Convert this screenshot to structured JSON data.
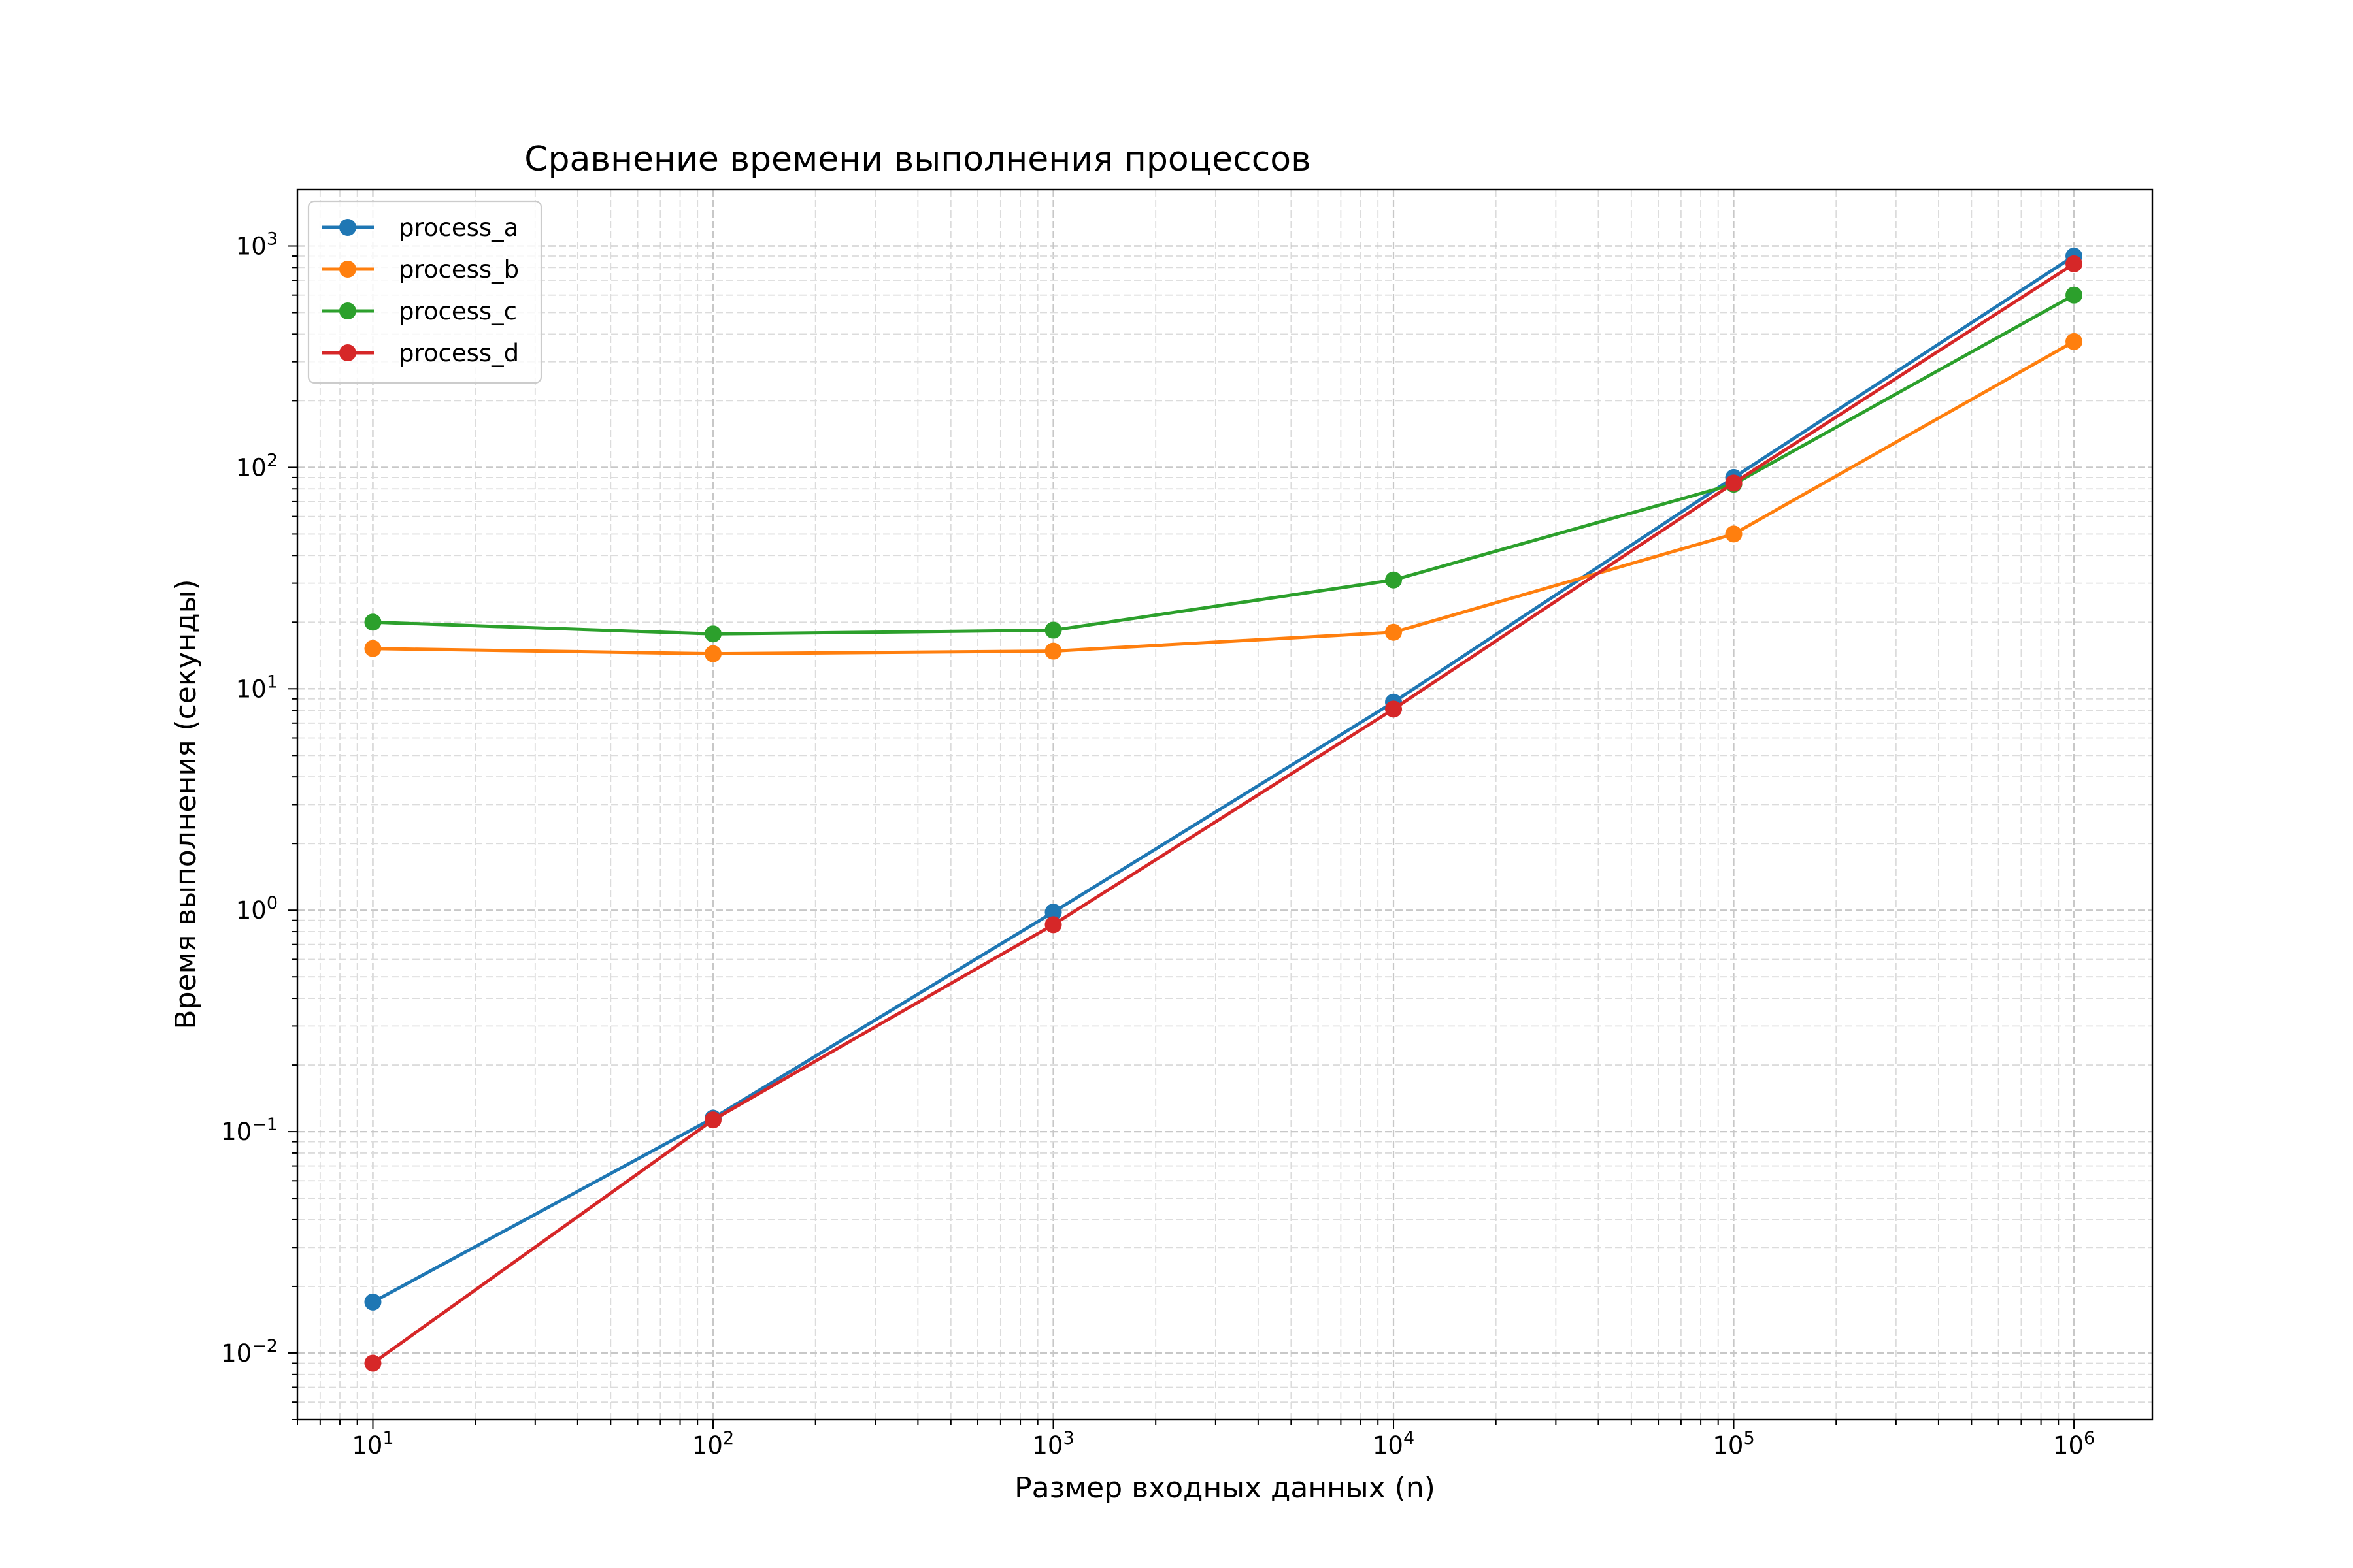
{
  "chart_data": {
    "type": "line",
    "title": "Сравнение времени выполнения процессов",
    "xlabel": "Размер входных данных (n)",
    "ylabel": "Время выполнения (секунды)",
    "xscale": "log",
    "yscale": "log",
    "grid": true,
    "grid_which": "both",
    "legend_position": "top-left",
    "xlim": [
      6,
      1700000
    ],
    "ylim": [
      0.005,
      1800
    ],
    "x": [
      10,
      100,
      1000,
      10000,
      100000,
      1000000
    ],
    "x_ticks": [
      {
        "value": 10,
        "base": "10",
        "exp": "1"
      },
      {
        "value": 100,
        "base": "10",
        "exp": "2"
      },
      {
        "value": 1000,
        "base": "10",
        "exp": "3"
      },
      {
        "value": 10000,
        "base": "10",
        "exp": "4"
      },
      {
        "value": 100000,
        "base": "10",
        "exp": "5"
      },
      {
        "value": 1000000,
        "base": "10",
        "exp": "6"
      }
    ],
    "y_ticks": [
      {
        "value": 0.01,
        "base": "10",
        "exp": "−2"
      },
      {
        "value": 0.1,
        "base": "10",
        "exp": "−1"
      },
      {
        "value": 1,
        "base": "10",
        "exp": "0"
      },
      {
        "value": 10,
        "base": "10",
        "exp": "1"
      },
      {
        "value": 100,
        "base": "10",
        "exp": "2"
      },
      {
        "value": 1000,
        "base": "10",
        "exp": "3"
      }
    ],
    "series": [
      {
        "name": "process_a",
        "color": "#1f77b4",
        "marker": "circle",
        "values": [
          0.017,
          0.115,
          0.98,
          8.7,
          90,
          900
        ]
      },
      {
        "name": "process_b",
        "color": "#ff7f0e",
        "marker": "circle",
        "values": [
          15.2,
          14.4,
          14.8,
          18.0,
          50,
          370
        ]
      },
      {
        "name": "process_c",
        "color": "#2ca02c",
        "marker": "circle",
        "values": [
          20.0,
          17.7,
          18.4,
          31.0,
          84,
          600
        ]
      },
      {
        "name": "process_d",
        "color": "#d62728",
        "marker": "circle",
        "values": [
          0.009,
          0.113,
          0.86,
          8.1,
          85,
          830
        ]
      }
    ]
  }
}
